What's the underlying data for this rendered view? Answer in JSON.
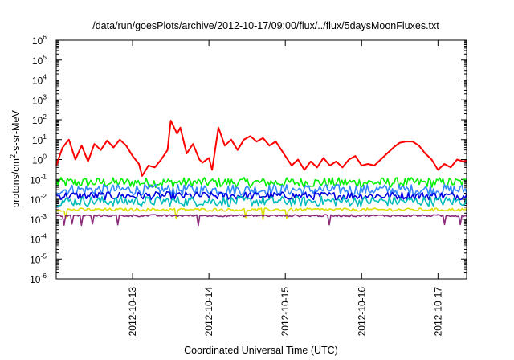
{
  "chart_data": {
    "type": "line",
    "title": "/data/run/goesPlots/archive/2012-10-17/09:00/flux/../flux/5daysMoonFluxes.txt",
    "xlabel": "Coordinated Universal Time (UTC)",
    "ylabel_parts": {
      "pre": "protons/cm",
      "sup": "2",
      "post": "-s-sr-MeV"
    },
    "y_scale": "log",
    "ylim": [
      1e-06,
      1000000.0
    ],
    "y_ticks": [
      {
        "exp": "-6",
        "value": 1e-06
      },
      {
        "exp": "-5",
        "value": 1e-05
      },
      {
        "exp": "-4",
        "value": 0.0001
      },
      {
        "exp": "-3",
        "value": 0.001
      },
      {
        "exp": "-2",
        "value": 0.01
      },
      {
        "exp": "-1",
        "value": 0.1
      },
      {
        "exp": "0",
        "value": 1
      },
      {
        "exp": "1",
        "value": 10
      },
      {
        "exp": "2",
        "value": 100
      },
      {
        "exp": "3",
        "value": 1000.0
      },
      {
        "exp": "4",
        "value": 10000.0
      },
      {
        "exp": "5",
        "value": 100000.0
      },
      {
        "exp": "6",
        "value": 1000000.0
      }
    ],
    "y_tick_base": "10",
    "x_range": [
      "2012-10-12T00:00",
      "2012-10-17T09:00"
    ],
    "x_ticks": [
      "2012-10-13",
      "2012-10-14",
      "2012-10-15",
      "2012-10-16",
      "2012-10-17"
    ],
    "grid": false,
    "legend": "none",
    "series": [
      {
        "color": "#ff0000",
        "points": [
          [
            "2012-10-12T00:00",
            0.5
          ],
          [
            "2012-10-12T02:00",
            4
          ],
          [
            "2012-10-12T04:00",
            10
          ],
          [
            "2012-10-12T06:00",
            1
          ],
          [
            "2012-10-12T08:00",
            5
          ],
          [
            "2012-10-12T10:00",
            0.8
          ],
          [
            "2012-10-12T12:00",
            6
          ],
          [
            "2012-10-12T14:00",
            3
          ],
          [
            "2012-10-12T16:00",
            9
          ],
          [
            "2012-10-12T18:00",
            4
          ],
          [
            "2012-10-12T20:00",
            10
          ],
          [
            "2012-10-12T22:00",
            5
          ],
          [
            "2012-10-13T00:00",
            1.5
          ],
          [
            "2012-10-13T02:00",
            0.6
          ],
          [
            "2012-10-13T03:00",
            0.15
          ],
          [
            "2012-10-13T05:00",
            0.5
          ],
          [
            "2012-10-13T07:00",
            0.4
          ],
          [
            "2012-10-13T09:00",
            1
          ],
          [
            "2012-10-13T11:00",
            3
          ],
          [
            "2012-10-13T12:00",
            90
          ],
          [
            "2012-10-13T14:00",
            20
          ],
          [
            "2012-10-13T15:00",
            40
          ],
          [
            "2012-10-13T17:00",
            2
          ],
          [
            "2012-10-13T19:00",
            6
          ],
          [
            "2012-10-13T21:00",
            1
          ],
          [
            "2012-10-13T22:00",
            0.7
          ],
          [
            "2012-10-14T00:00",
            1.2
          ],
          [
            "2012-10-14T01:00",
            0.3
          ],
          [
            "2012-10-14T03:00",
            40
          ],
          [
            "2012-10-14T05:00",
            5
          ],
          [
            "2012-10-14T07:00",
            10
          ],
          [
            "2012-10-14T09:00",
            3
          ],
          [
            "2012-10-14T11:00",
            10
          ],
          [
            "2012-10-14T13:00",
            15
          ],
          [
            "2012-10-14T15:00",
            8
          ],
          [
            "2012-10-14T17:00",
            12
          ],
          [
            "2012-10-14T19:00",
            5
          ],
          [
            "2012-10-14T21:00",
            8
          ],
          [
            "2012-10-15T00:00",
            1.5
          ],
          [
            "2012-10-15T02:00",
            0.5
          ],
          [
            "2012-10-15T04:00",
            1
          ],
          [
            "2012-10-15T06:00",
            0.3
          ],
          [
            "2012-10-15T08:00",
            0.8
          ],
          [
            "2012-10-15T10:00",
            0.4
          ],
          [
            "2012-10-15T12:00",
            1.2
          ],
          [
            "2012-10-15T14:00",
            0.5
          ],
          [
            "2012-10-15T16:00",
            0.8
          ],
          [
            "2012-10-15T18:00",
            0.4
          ],
          [
            "2012-10-15T20:00",
            1
          ],
          [
            "2012-10-15T22:00",
            1.5
          ],
          [
            "2012-10-16T00:00",
            0.5
          ],
          [
            "2012-10-16T02:00",
            0.6
          ],
          [
            "2012-10-16T04:00",
            0.5
          ],
          [
            "2012-10-16T06:00",
            1
          ],
          [
            "2012-10-16T08:00",
            2
          ],
          [
            "2012-10-16T10:00",
            4
          ],
          [
            "2012-10-16T12:00",
            7
          ],
          [
            "2012-10-16T14:00",
            8
          ],
          [
            "2012-10-16T16:00",
            8
          ],
          [
            "2012-10-16T18:00",
            5
          ],
          [
            "2012-10-16T20:00",
            2
          ],
          [
            "2012-10-16T22:00",
            1
          ],
          [
            "2012-10-17T00:00",
            0.3
          ],
          [
            "2012-10-17T02:00",
            0.6
          ],
          [
            "2012-10-17T04:00",
            0.4
          ],
          [
            "2012-10-17T06:00",
            1
          ],
          [
            "2012-10-17T08:00",
            0.8
          ],
          [
            "2012-10-17T09:00",
            0.9
          ]
        ]
      },
      {
        "color": "#00ee00",
        "mean": 0.07,
        "spread": 0.5
      },
      {
        "color": "#3388ff",
        "mean": 0.03,
        "spread": 0.55
      },
      {
        "color": "#0000dd",
        "mean": 0.015,
        "spread": 0.4
      },
      {
        "color": "#00bbbb",
        "mean": 0.008,
        "spread": 0.5
      },
      {
        "color": "#dddd00",
        "mean": 0.003,
        "spread": 0.15
      },
      {
        "color": "#8b2a7b",
        "mean": 0.0015,
        "spread": 0.1
      }
    ]
  }
}
